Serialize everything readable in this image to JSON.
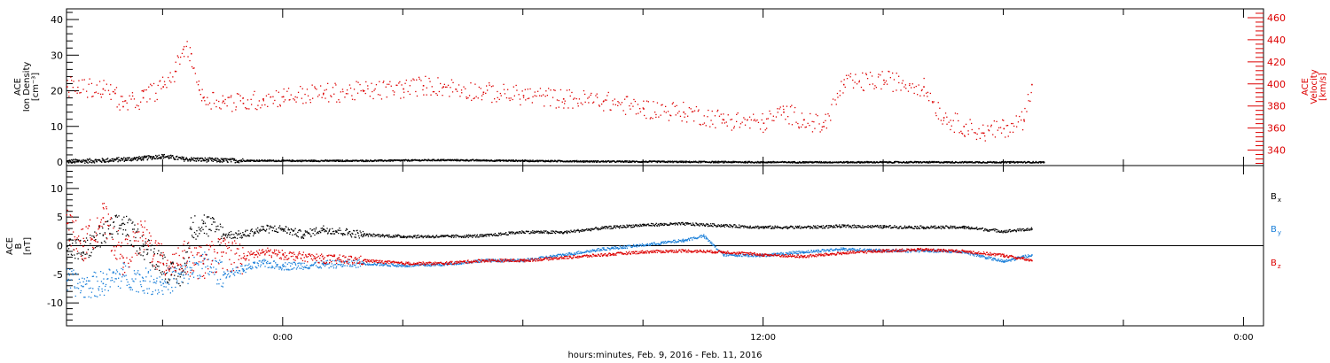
{
  "figure": {
    "xaxis_label": "hours:minutes, Feb.  9, 2016 - Feb. 11, 2016",
    "x_ticks": [
      {
        "hours": 0,
        "label": "0:00"
      },
      {
        "hours": 12,
        "label": "12:00"
      },
      {
        "hours": 24,
        "label": "0:00"
      }
    ]
  },
  "chart_data": [
    {
      "type": "scatter",
      "title": "",
      "x_unit": "hours from Feb. 10, 2016 00:00",
      "xlim": [
        -5.4,
        24.5
      ],
      "left_axis": {
        "label_lines": [
          "ACE",
          "Ion Density",
          "[cm⁻³]"
        ],
        "ylim": [
          -1,
          43
        ],
        "ticks": [
          0,
          10,
          20,
          30,
          40
        ]
      },
      "right_axis": {
        "label_lines": [
          "ACE",
          "Velocity",
          "[km/s]"
        ],
        "ylim": [
          326,
          468
        ],
        "ticks": [
          340,
          360,
          380,
          400,
          420,
          440,
          460
        ],
        "color": "#dd0000"
      },
      "series": [
        {
          "name": "",
          "color": "#000000",
          "axis": "left",
          "x": [
            -5.4,
            -4.5,
            -3.5,
            -3.0,
            -2.5,
            -1.5,
            0.0,
            2.0,
            4.0,
            6.0,
            8.0,
            12.0,
            18.0,
            19.0
          ],
          "y": [
            0.3,
            0.6,
            1.2,
            1.8,
            1.0,
            0.6,
            0.5,
            0.5,
            0.7,
            0.5,
            0.3,
            0.1,
            0.1,
            0.1
          ]
        },
        {
          "name": "",
          "color": "#dd0000",
          "axis": "right",
          "x": [
            -5.4,
            -4.5,
            -4.2,
            -4.0,
            -3.5,
            -3.0,
            -2.7,
            -2.5,
            -2.3,
            -2.1,
            -2.0,
            -1.5,
            -1.0,
            -0.5,
            0.0,
            1.0,
            2.0,
            3.0,
            3.5,
            4.0,
            5.0,
            6.0,
            7.0,
            8.0,
            9.0,
            10.0,
            11.0,
            12.0,
            12.5,
            13.0,
            13.5,
            14.0,
            15.0,
            16.0,
            16.5,
            17.0,
            17.5,
            18.0,
            18.5,
            18.7
          ],
          "y": [
            398,
            396,
            392,
            380,
            388,
            398,
            412,
            432,
            428,
            395,
            388,
            385,
            383,
            387,
            389,
            392,
            394,
            396,
            399,
            398,
            393,
            390,
            387,
            385,
            378,
            375,
            368,
            365,
            375,
            368,
            362,
            400,
            404,
            398,
            370,
            362,
            356,
            360,
            368,
            400
          ]
        }
      ]
    },
    {
      "type": "scatter",
      "title": "",
      "x_unit": "hours from Feb. 10, 2016 00:00",
      "xlim": [
        -5.4,
        24.5
      ],
      "left_axis": {
        "label_lines": [
          "ACE",
          "B",
          "[nT]"
        ],
        "ylim": [
          -14,
          14
        ],
        "ticks": [
          -10,
          -5,
          0,
          5,
          10
        ]
      },
      "zero_line": true,
      "legend": [
        {
          "base": "B",
          "sub": "x",
          "color": "#000000"
        },
        {
          "base": "B",
          "sub": "y",
          "color": "#1a7fd9"
        },
        {
          "base": "B",
          "sub": "z",
          "color": "#dd0000"
        }
      ],
      "series": [
        {
          "name": "Bx",
          "color": "#000000",
          "x": [
            -5.4,
            -5.0,
            -4.5,
            -4.0,
            -3.5,
            -3.0,
            -2.8,
            -2.5,
            -2.3,
            -2.0,
            -1.5,
            -1.0,
            -0.5,
            0.0,
            0.5,
            1.0,
            2.0,
            3.0,
            4.0,
            5.0,
            6.0,
            7.0,
            8.0,
            9.0,
            10.0,
            11.0,
            12.0,
            13.0,
            14.0,
            15.0,
            16.0,
            17.0,
            18.0,
            18.7
          ],
          "y": [
            0,
            -1,
            2,
            4,
            0,
            -3,
            -5,
            -5,
            3,
            4,
            2,
            2,
            3,
            3,
            2,
            3,
            2,
            1.7,
            1.7,
            1.8,
            2.5,
            2.4,
            3.2,
            3.7,
            3.9,
            3.6,
            3.3,
            3.3,
            3.5,
            3.4,
            3.3,
            3.3,
            2.6,
            3.0
          ]
        },
        {
          "name": "By",
          "color": "#1a7fd9",
          "x": [
            -5.4,
            -5.0,
            -4.5,
            -4.0,
            -3.5,
            -3.0,
            -2.5,
            -2.0,
            -1.5,
            -1.0,
            -0.5,
            0.0,
            1.0,
            2.0,
            3.0,
            4.0,
            5.0,
            6.0,
            7.0,
            8.0,
            9.0,
            10.0,
            10.5,
            11.0,
            12.0,
            13.0,
            14.0,
            15.0,
            16.0,
            17.0,
            18.0,
            18.7
          ],
          "y": [
            -6,
            -7,
            -6.5,
            -5,
            -6,
            -6.5,
            -5,
            -3,
            -5,
            -4,
            -3,
            -3.5,
            -3.2,
            -3.0,
            -3.4,
            -3.2,
            -2.5,
            -2.5,
            -1.5,
            -0.5,
            0.2,
            1.0,
            1.8,
            -1.5,
            -1.6,
            -1.0,
            -0.5,
            -0.8,
            -0.8,
            -1.0,
            -2.7,
            -1.5
          ]
        },
        {
          "name": "Bz",
          "color": "#dd0000",
          "x": [
            -5.4,
            -5.0,
            -4.5,
            -4.0,
            -3.5,
            -3.0,
            -2.5,
            -2.0,
            -1.5,
            -1.0,
            -0.5,
            0.0,
            1.0,
            2.0,
            3.0,
            4.0,
            5.0,
            6.0,
            7.0,
            8.0,
            9.0,
            10.0,
            11.0,
            12.0,
            13.0,
            14.0,
            15.0,
            16.0,
            17.0,
            18.0,
            18.7
          ],
          "y": [
            4,
            0,
            5,
            -2,
            2,
            -3,
            -2,
            -3,
            -1,
            -2,
            -1,
            -1.5,
            -2.2,
            -2.5,
            -3,
            -3,
            -2.5,
            -2.5,
            -2,
            -1.5,
            -1,
            -0.8,
            -1.0,
            -1.5,
            -1.8,
            -1.2,
            -0.8,
            -0.6,
            -0.9,
            -1.6,
            -2.5
          ]
        }
      ]
    }
  ]
}
